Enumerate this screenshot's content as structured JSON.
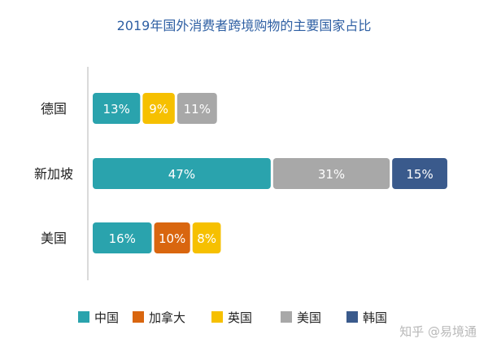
{
  "chart_data": {
    "type": "bar",
    "orientation": "horizontal",
    "stacked": true,
    "title": "2019年国外消费者跨境购物的主要国家占比",
    "categories": [
      "德国",
      "新加坡",
      "美国"
    ],
    "series": [
      {
        "name": "中国",
        "color": "#2aa3ad",
        "values": [
          13,
          47,
          16
        ]
      },
      {
        "name": "加拿大",
        "color": "#d9660f",
        "values": [
          null,
          null,
          10
        ]
      },
      {
        "name": "英国",
        "color": "#f6c000",
        "values": [
          9,
          null,
          8
        ]
      },
      {
        "name": "美国",
        "color": "#a8a8a8",
        "values": [
          11,
          31,
          null
        ]
      },
      {
        "name": "韩国",
        "color": "#3a5a8c",
        "values": [
          null,
          15,
          null
        ]
      }
    ],
    "value_suffix": "%",
    "legend_position": "bottom",
    "grid": false
  },
  "watermark": "知乎 @易境通"
}
